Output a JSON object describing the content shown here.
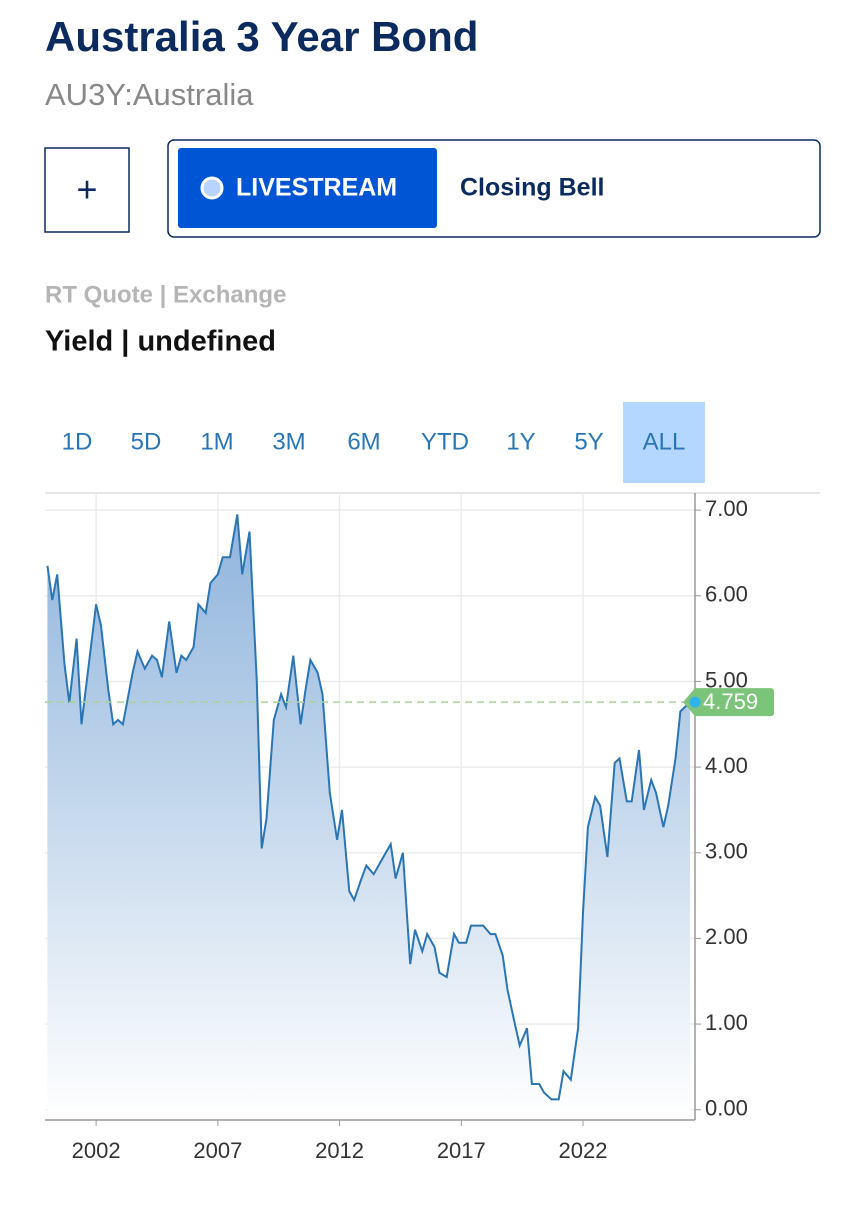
{
  "header": {
    "title": "Australia 3 Year Bond",
    "subtitle": "AU3Y:Australia"
  },
  "actions": {
    "add": "+",
    "livestream": "LIVESTREAM",
    "closing_bell": "Closing Bell"
  },
  "quote": {
    "source": "RT Quote | Exchange",
    "label": "Yield | undefined"
  },
  "ranges": [
    {
      "label": "1D"
    },
    {
      "label": "5D"
    },
    {
      "label": "1M"
    },
    {
      "label": "3M"
    },
    {
      "label": "6M"
    },
    {
      "label": "YTD"
    },
    {
      "label": "1Y"
    },
    {
      "label": "5Y"
    },
    {
      "label": "ALL",
      "selected": true
    }
  ],
  "chart_data": {
    "type": "line",
    "color": "#2a75b3",
    "area": true,
    "grid": true,
    "x": [
      2000.0,
      2000.2,
      2000.4,
      2000.7,
      2000.9,
      2001.2,
      2001.4,
      2002.0,
      2002.2,
      2002.5,
      2002.7,
      2002.9,
      2003.1,
      2003.5,
      2003.7,
      2004.0,
      2004.3,
      2004.5,
      2004.7,
      2005.0,
      2005.3,
      2005.5,
      2005.7,
      2006.0,
      2006.2,
      2006.5,
      2006.7,
      2007.0,
      2007.2,
      2007.5,
      2007.8,
      2008.0,
      2008.3,
      2008.6,
      2008.8,
      2009.0,
      2009.3,
      2009.6,
      2009.8,
      2010.1,
      2010.4,
      2010.6,
      2010.8,
      2011.1,
      2011.3,
      2011.6,
      2011.9,
      2012.1,
      2012.4,
      2012.6,
      2012.9,
      2013.1,
      2013.4,
      2013.6,
      2013.8,
      2014.1,
      2014.3,
      2014.6,
      2014.9,
      2015.1,
      2015.4,
      2015.6,
      2015.9,
      2016.1,
      2016.4,
      2016.7,
      2016.9,
      2017.2,
      2017.4,
      2017.7,
      2017.9,
      2018.2,
      2018.4,
      2018.7,
      2018.9,
      2019.2,
      2019.4,
      2019.7,
      2019.9,
      2020.2,
      2020.4,
      2020.7,
      2021.0,
      2021.2,
      2021.5,
      2021.8,
      2022.0,
      2022.2,
      2022.5,
      2022.7,
      2023.0,
      2023.3,
      2023.5,
      2023.8,
      2024.0,
      2024.3,
      2024.5,
      2024.8,
      2025.0,
      2025.3,
      2025.5,
      2025.8,
      2026.0,
      2026.4
    ],
    "values": [
      6.35,
      5.95,
      6.25,
      5.2,
      4.75,
      5.5,
      4.5,
      5.9,
      5.65,
      4.9,
      4.5,
      4.55,
      4.5,
      5.1,
      5.35,
      5.15,
      5.3,
      5.25,
      5.05,
      5.7,
      5.1,
      5.3,
      5.25,
      5.4,
      5.9,
      5.8,
      6.15,
      6.25,
      6.45,
      6.45,
      6.95,
      6.25,
      6.75,
      5.0,
      3.05,
      3.4,
      4.55,
      4.85,
      4.7,
      5.3,
      4.5,
      4.9,
      5.25,
      5.1,
      4.85,
      3.7,
      3.15,
      3.5,
      2.55,
      2.45,
      2.7,
      2.85,
      2.75,
      2.85,
      2.95,
      3.1,
      2.7,
      3.0,
      1.7,
      2.1,
      1.85,
      2.05,
      1.9,
      1.6,
      1.55,
      2.05,
      1.95,
      1.95,
      2.15,
      2.15,
      2.15,
      2.05,
      2.05,
      1.8,
      1.4,
      1.0,
      0.75,
      0.95,
      0.3,
      0.3,
      0.2,
      0.12,
      0.12,
      0.45,
      0.35,
      0.95,
      2.3,
      3.3,
      3.65,
      3.55,
      2.95,
      4.05,
      4.1,
      3.6,
      3.6,
      4.2,
      3.5,
      3.85,
      3.7,
      3.3,
      3.55,
      4.1,
      4.65,
      4.759
    ],
    "xlim": [
      1999.9,
      2026.6
    ],
    "ylim": [
      -0.12,
      7.2
    ],
    "xticks": [
      2002,
      2007,
      2012,
      2017,
      2022
    ],
    "yticks": [
      {
        "value": 0,
        "label": "0.00"
      },
      {
        "value": 1,
        "label": "1.00"
      },
      {
        "value": 2,
        "label": "2.00"
      },
      {
        "value": 3,
        "label": "3.00"
      },
      {
        "value": 4,
        "label": "4.00"
      },
      {
        "value": 5,
        "label": "5.00"
      },
      {
        "value": 6,
        "label": "6.00"
      },
      {
        "value": 7,
        "label": "7.00"
      }
    ],
    "last_value": 4.759,
    "last_value_color": "#7cc47a"
  }
}
